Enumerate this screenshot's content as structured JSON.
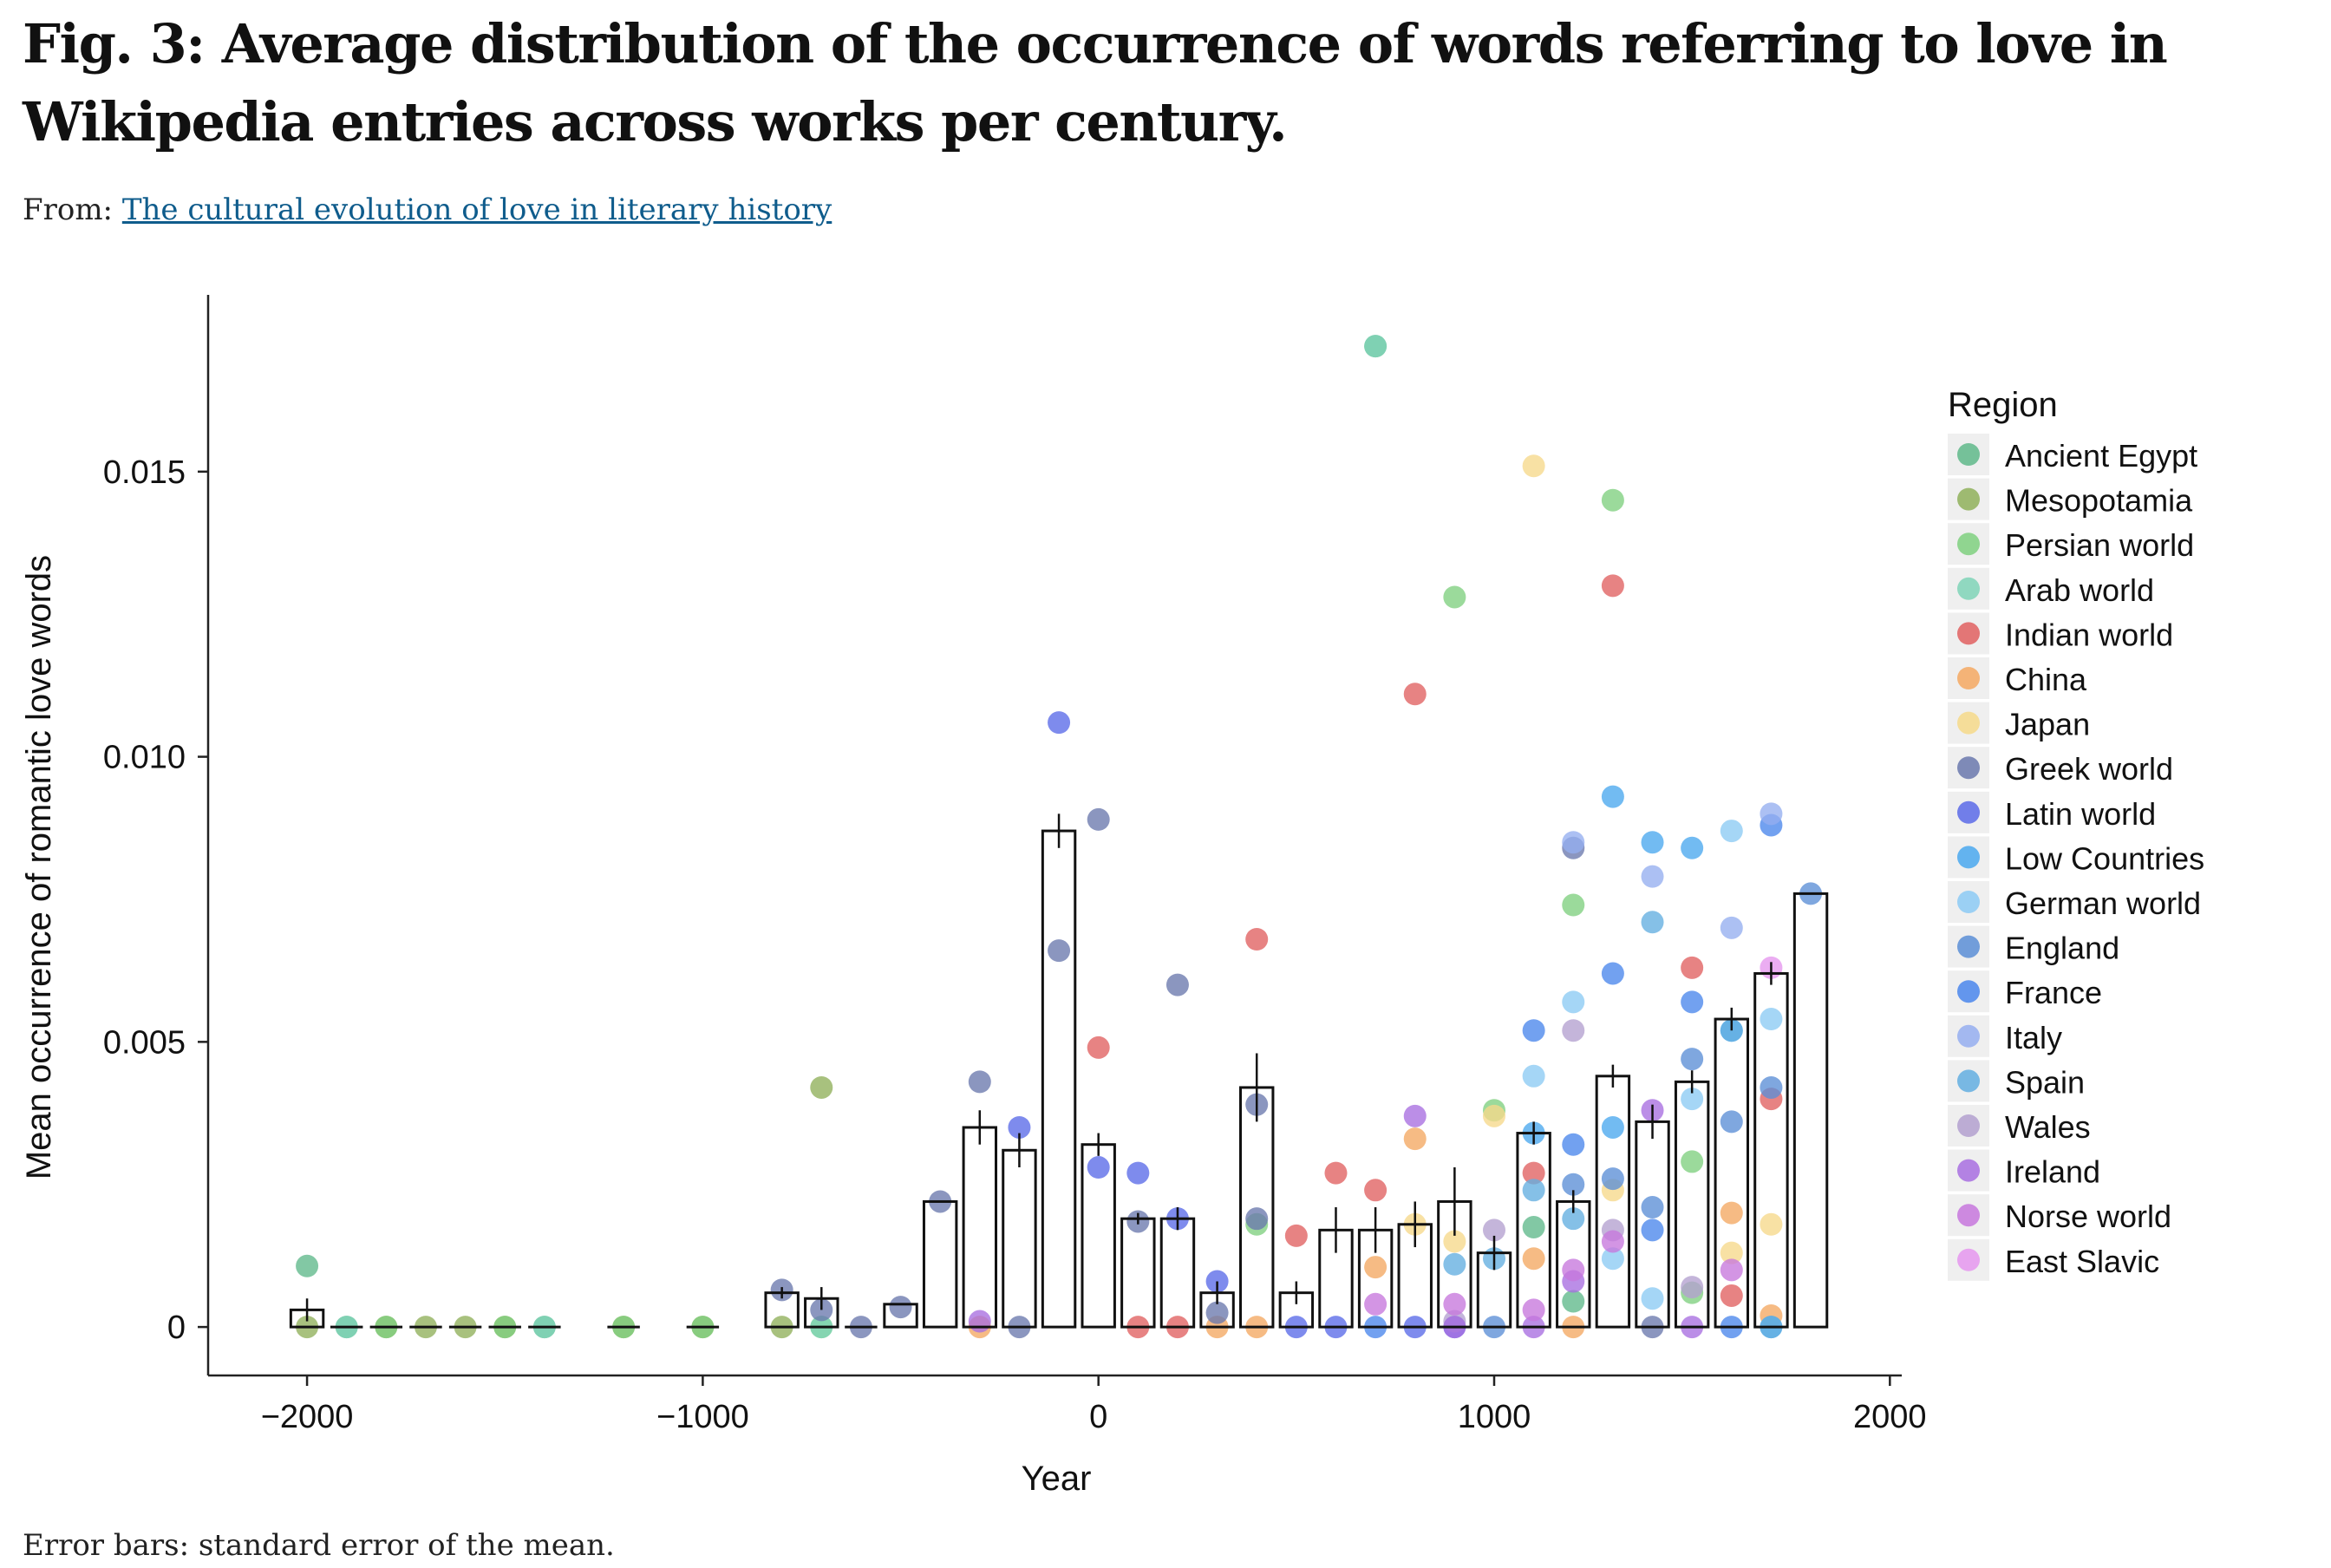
{
  "figure": {
    "title": "Fig. 3: Average distribution of the occurrence of words referring to love in Wikipedia entries across works per century.",
    "from_label": "From:",
    "from_link": "The cultural evolution of love in literary history",
    "caption": "Error bars: standard error of the mean."
  },
  "chart_data": {
    "type": "bar",
    "title": "",
    "xlabel": "Year",
    "ylabel": "Mean occurrence of romantic love words",
    "xlim": [
      -2250,
      2030
    ],
    "ylim": [
      -0.00085,
      0.0181
    ],
    "x_ticks": [
      -2000,
      -1000,
      0,
      1000,
      2000
    ],
    "x_tick_labels": [
      "−2000",
      "−1000",
      "0",
      "1000",
      "2000"
    ],
    "y_ticks": [
      0,
      0.005,
      0.01,
      0.015
    ],
    "y_tick_labels": [
      "0",
      "0.005",
      "0.010",
      "0.015"
    ],
    "grid": false,
    "legend": {
      "title": "Region",
      "position": "right"
    },
    "bars": {
      "x": [
        -2000,
        -1900,
        -1800,
        -1700,
        -1600,
        -1500,
        -1400,
        -1200,
        -1000,
        -800,
        -700,
        -600,
        -500,
        -400,
        -300,
        -200,
        -100,
        0,
        100,
        200,
        300,
        400,
        500,
        600,
        700,
        800,
        900,
        1000,
        1100,
        1200,
        1300,
        1400,
        1500,
        1600,
        1700,
        1800
      ],
      "values": [
        0.0003,
        0,
        0,
        0,
        0,
        0,
        0,
        0,
        0,
        0.0006,
        0.0005,
        0,
        0.0004,
        0.0022,
        0.0035,
        0.0031,
        0.0087,
        0.0032,
        0.0019,
        0.0019,
        0.0006,
        0.0042,
        0.0006,
        0.0017,
        0.0017,
        0.0018,
        0.0022,
        0.0013,
        0.0034,
        0.0022,
        0.0044,
        0.0036,
        0.0043,
        0.0054,
        0.0062,
        0.0076
      ],
      "errors": [
        0.0002,
        0,
        0,
        0,
        0,
        0,
        0,
        0,
        0,
        0.0001,
        0.0002,
        0,
        0,
        0,
        0.0003,
        0.0003,
        0.0003,
        0.0002,
        0.0001,
        0.0002,
        0.0002,
        0.0006,
        0.0002,
        0.0004,
        0.0004,
        0.0004,
        0.0006,
        0.0003,
        0.0002,
        0.0002,
        0.0002,
        0.0003,
        0.0002,
        0.0002,
        0.0002,
        0
      ]
    },
    "series": [
      {
        "name": "Ancient Egypt",
        "color": "#5fb88a",
        "points": [
          [
            -2000,
            0.00107
          ],
          [
            -1900,
            0
          ],
          [
            -1400,
            0
          ],
          [
            700,
            0.0172
          ],
          [
            1100,
            0.00175
          ],
          [
            1200,
            0.00045
          ]
        ]
      },
      {
        "name": "Mesopotamia",
        "color": "#8fb05a",
        "points": [
          [
            -2000,
            0
          ],
          [
            -1800,
            0
          ],
          [
            -1700,
            0
          ],
          [
            -1600,
            0
          ],
          [
            -1500,
            0
          ],
          [
            -1200,
            0
          ],
          [
            -1000,
            0
          ],
          [
            -800,
            0
          ],
          [
            -700,
            0.0042
          ]
        ]
      },
      {
        "name": "Persian world",
        "color": "#7fd07f",
        "points": [
          [
            -1800,
            0
          ],
          [
            -1500,
            0
          ],
          [
            -1200,
            0
          ],
          [
            -1000,
            0
          ],
          [
            -700,
            0
          ],
          [
            400,
            0.0018
          ],
          [
            900,
            0.0128
          ],
          [
            1000,
            0.0038
          ],
          [
            1200,
            0.0074
          ],
          [
            1300,
            0.0145
          ],
          [
            1500,
            0.0029
          ],
          [
            1500,
            0.0006
          ]
        ]
      },
      {
        "name": "Arab world",
        "color": "#7fd3b7",
        "points": [
          [
            -1900,
            0
          ],
          [
            -1400,
            0
          ],
          [
            -700,
            0
          ],
          [
            700,
            0.0172
          ]
        ]
      },
      {
        "name": "Indian world",
        "color": "#e06060",
        "points": [
          [
            0,
            0.0049
          ],
          [
            100,
            0
          ],
          [
            200,
            0
          ],
          [
            400,
            0.0068
          ],
          [
            500,
            0.0016
          ],
          [
            600,
            0.0027
          ],
          [
            700,
            0.0024
          ],
          [
            800,
            0.0111
          ],
          [
            1100,
            0.0027
          ],
          [
            1300,
            0.013
          ],
          [
            1500,
            0.0063
          ],
          [
            1600,
            0.00055
          ],
          [
            1700,
            0.004
          ]
        ]
      },
      {
        "name": "China",
        "color": "#f4a861",
        "points": [
          [
            -300,
            0
          ],
          [
            300,
            0
          ],
          [
            400,
            0
          ],
          [
            700,
            0.00105
          ],
          [
            800,
            0.0033
          ],
          [
            1100,
            0.0012
          ],
          [
            1200,
            0
          ],
          [
            1600,
            0.002
          ],
          [
            1700,
            0.0002
          ]
        ]
      },
      {
        "name": "Japan",
        "color": "#f6d98a",
        "points": [
          [
            800,
            0.0018
          ],
          [
            900,
            0.0015
          ],
          [
            1000,
            0.0037
          ],
          [
            1100,
            0.0151
          ],
          [
            1300,
            0.0024
          ],
          [
            1600,
            0.0013
          ],
          [
            1700,
            0.0018
          ]
        ]
      },
      {
        "name": "Greek world",
        "color": "#6a78ad",
        "points": [
          [
            -800,
            0.00065
          ],
          [
            -700,
            0.0003
          ],
          [
            -600,
            0
          ],
          [
            -500,
            0.00035
          ],
          [
            -400,
            0.0022
          ],
          [
            -300,
            0.0043
          ],
          [
            -200,
            0
          ],
          [
            -100,
            0.0066
          ],
          [
            0,
            0.0089
          ],
          [
            100,
            0.00185
          ],
          [
            200,
            0.006
          ],
          [
            300,
            0.00025
          ],
          [
            400,
            0.0039
          ],
          [
            400,
            0.0019
          ],
          [
            1200,
            0.0084
          ],
          [
            1400,
            0
          ]
        ]
      },
      {
        "name": "Latin world",
        "color": "#5a6ae8",
        "points": [
          [
            -200,
            0.0035
          ],
          [
            -100,
            0.0106
          ],
          [
            0,
            0.0028
          ],
          [
            100,
            0.0027
          ],
          [
            200,
            0.0019
          ],
          [
            300,
            0.0008
          ],
          [
            500,
            0
          ],
          [
            600,
            0
          ],
          [
            800,
            0
          ],
          [
            900,
            0
          ]
        ]
      },
      {
        "name": "Low Countries",
        "color": "#4aa8ee",
        "points": [
          [
            1100,
            0.0034
          ],
          [
            1300,
            0.0093
          ],
          [
            1300,
            0.0035
          ],
          [
            1400,
            0.0085
          ],
          [
            1500,
            0.0084
          ],
          [
            1600,
            0.0052
          ],
          [
            1700,
            0
          ]
        ]
      },
      {
        "name": "German world",
        "color": "#8ccaf4",
        "points": [
          [
            1100,
            0.0044
          ],
          [
            1200,
            0.0057
          ],
          [
            1300,
            0.0012
          ],
          [
            1400,
            0.0005
          ],
          [
            1500,
            0.004
          ],
          [
            1600,
            0.0087
          ],
          [
            1700,
            0.0054
          ]
        ]
      },
      {
        "name": "England",
        "color": "#5b8ed6",
        "points": [
          [
            1000,
            0
          ],
          [
            1200,
            0.0025
          ],
          [
            1300,
            0.0026
          ],
          [
            1400,
            0.0021
          ],
          [
            1500,
            0.0047
          ],
          [
            1600,
            0.0036
          ],
          [
            1700,
            0.0042
          ],
          [
            1800,
            0.0076
          ]
        ]
      },
      {
        "name": "France",
        "color": "#4a86ec",
        "points": [
          [
            700,
            0
          ],
          [
            1100,
            0.0052
          ],
          [
            1200,
            0.0032
          ],
          [
            1300,
            0.0062
          ],
          [
            1400,
            0.0017
          ],
          [
            1500,
            0.0057
          ],
          [
            1600,
            0
          ],
          [
            1700,
            0.0088
          ]
        ]
      },
      {
        "name": "Italy",
        "color": "#95aef0",
        "points": [
          [
            1200,
            0.0085
          ],
          [
            1400,
            0.0079
          ],
          [
            1600,
            0.007
          ],
          [
            1700,
            0.009
          ]
        ]
      },
      {
        "name": "Spain",
        "color": "#63aee0",
        "points": [
          [
            900,
            0.0011
          ],
          [
            1000,
            0.0012
          ],
          [
            1100,
            0.0024
          ],
          [
            1200,
            0.0019
          ],
          [
            1400,
            0.0071
          ],
          [
            1600,
            0.0052
          ],
          [
            1700,
            0
          ]
        ]
      },
      {
        "name": "Wales",
        "color": "#b3a0cf",
        "points": [
          [
            900,
            0.0001
          ],
          [
            1000,
            0.0017
          ],
          [
            1200,
            0.0052
          ],
          [
            1300,
            0.0017
          ],
          [
            1500,
            0.0007
          ]
        ]
      },
      {
        "name": "Ireland",
        "color": "#a86ee0",
        "points": [
          [
            -300,
            0.0001
          ],
          [
            800,
            0.0037
          ],
          [
            900,
            0
          ],
          [
            1100,
            0
          ],
          [
            1200,
            0.0008
          ],
          [
            1400,
            0.0038
          ],
          [
            1500,
            0
          ]
        ]
      },
      {
        "name": "Norse world",
        "color": "#c777dd",
        "points": [
          [
            700,
            0.0004
          ],
          [
            900,
            0.0004
          ],
          [
            1100,
            0.0003
          ],
          [
            1200,
            0.001
          ],
          [
            1300,
            0.0015
          ],
          [
            1600,
            0.001
          ]
        ]
      },
      {
        "name": "East Slavic",
        "color": "#e596ee",
        "points": [
          [
            1700,
            0.0063
          ]
        ]
      }
    ]
  }
}
